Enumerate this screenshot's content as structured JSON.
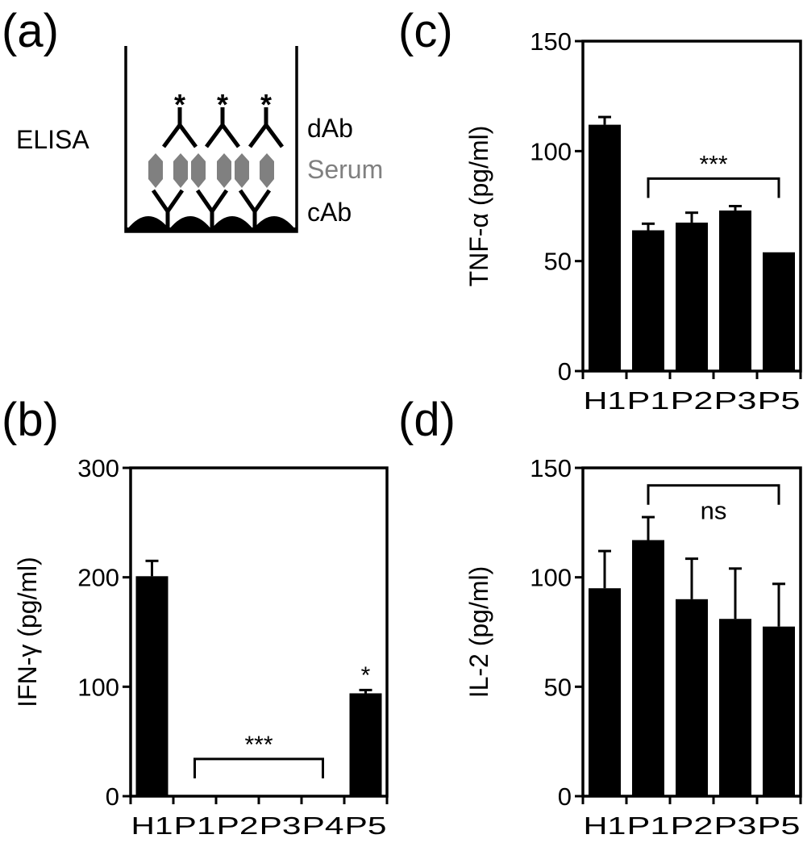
{
  "panel_labels": {
    "a": "(a)",
    "b": "(b)",
    "c": "(c)",
    "d": "(d)"
  },
  "diagram": {
    "method_label": "ELISA",
    "layer_labels": {
      "detection": "dAb",
      "serum": "Serum",
      "capture": "cAb"
    },
    "detection_marker": "*",
    "colors": {
      "antibody": "#000000",
      "serum": "#808080"
    }
  },
  "chart_data": [
    {
      "panel": "(b)",
      "type": "bar",
      "ylabel": "IFN-γ (pg/ml)",
      "categories": [
        "H1",
        "P1",
        "P2",
        "P3",
        "P4",
        "P5"
      ],
      "values": [
        201,
        0,
        0,
        0,
        0,
        94
      ],
      "error_upper": [
        215,
        null,
        null,
        null,
        null,
        97
      ],
      "ylim": [
        0,
        300
      ],
      "yticks": [
        "0",
        "100",
        "200",
        "300"
      ],
      "annotations": [
        {
          "text": "***",
          "bracket_from": "P1",
          "bracket_to": "P4",
          "level": 34
        },
        {
          "text": "*",
          "over": "P5",
          "level": 112
        }
      ],
      "bar_color": "#000000",
      "grid": false
    },
    {
      "panel": "(c)",
      "type": "bar",
      "ylabel": "TNF-α (pg/ml)",
      "categories": [
        "H1",
        "P1",
        "P2",
        "P3",
        "P5"
      ],
      "values": [
        112,
        64,
        67.5,
        73,
        54
      ],
      "error_upper": [
        115.5,
        67,
        72,
        75,
        null
      ],
      "ylim": [
        0,
        150
      ],
      "yticks": [
        "0",
        "50",
        "100",
        "150"
      ],
      "annotations": [
        {
          "text": "***",
          "bracket_from": "P1",
          "bracket_to": "P5",
          "level": 87.5
        }
      ],
      "bar_color": "#000000",
      "grid": false
    },
    {
      "panel": "(d)",
      "type": "bar",
      "ylabel": "IL-2 (pg/ml)",
      "categories": [
        "H1",
        "P1",
        "P2",
        "P3",
        "P5"
      ],
      "values": [
        95,
        117,
        90,
        81,
        77.5
      ],
      "error_upper": [
        112,
        127.5,
        108.5,
        104,
        97
      ],
      "ylim": [
        0,
        150
      ],
      "yticks": [
        "0",
        "50",
        "100",
        "150"
      ],
      "annotations": [
        {
          "text": "ns",
          "bracket_from": "P1",
          "bracket_to": "P5",
          "level": 142,
          "below": true
        }
      ],
      "bar_color": "#000000",
      "grid": false
    }
  ]
}
